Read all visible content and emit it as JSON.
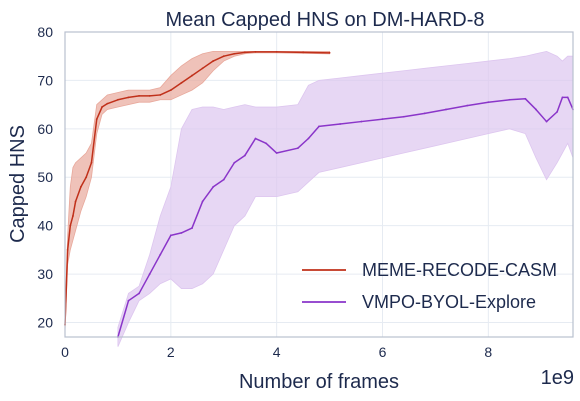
{
  "chart_data": {
    "type": "line",
    "title": "Mean Capped HNS on DM-HARD-8",
    "xlabel": "Number of frames",
    "ylabel": "Capped HNS",
    "x_multiplier_label": "1e9",
    "xlim": [
      0,
      9.6
    ],
    "ylim": [
      17,
      80
    ],
    "xticks": [
      0,
      2,
      4,
      6,
      8
    ],
    "yticks": [
      20,
      30,
      40,
      50,
      60,
      70,
      80
    ],
    "grid": true,
    "legend_position": "lower-right",
    "series": [
      {
        "name": "MEME-RECODE-CASM",
        "color": "#c0301a",
        "band_color": "#e8a89b",
        "x": [
          0.0,
          0.05,
          0.1,
          0.15,
          0.2,
          0.3,
          0.4,
          0.5,
          0.6,
          0.7,
          0.8,
          1.0,
          1.2,
          1.4,
          1.6,
          1.8,
          2.0,
          2.2,
          2.4,
          2.6,
          2.8,
          3.0,
          3.2,
          3.4,
          3.6,
          4.0,
          4.5,
          5.0
        ],
        "y": [
          19.5,
          35,
          40,
          42,
          45,
          48,
          50,
          53,
          62,
          64.5,
          65.2,
          66,
          66.5,
          66.8,
          66.8,
          67,
          68,
          69.5,
          71,
          72.5,
          74,
          75,
          75.5,
          75.8,
          75.9,
          75.9,
          75.8,
          75.7
        ],
        "upper": [
          21,
          38,
          48,
          52,
          53,
          54,
          55,
          57,
          65,
          66,
          67,
          67.5,
          68,
          68,
          68,
          68.5,
          71,
          73,
          74.5,
          75.5,
          76,
          76,
          76,
          76,
          76,
          76,
          76,
          76
        ],
        "lower": [
          18,
          32,
          35,
          37,
          39,
          43,
          46,
          50,
          59,
          63,
          64,
          64.5,
          65,
          65.5,
          65.5,
          66,
          66,
          67,
          68,
          69.5,
          72,
          74,
          75,
          75.5,
          75.7,
          75.7,
          75.6,
          75.5
        ]
      },
      {
        "name": "VMPO-BYOL-Explore",
        "color": "#8a35c9",
        "band_color": "#ddc6ef",
        "x": [
          1.0,
          1.2,
          1.4,
          1.6,
          1.8,
          2.0,
          2.2,
          2.4,
          2.6,
          2.8,
          3.0,
          3.2,
          3.4,
          3.6,
          3.8,
          4.0,
          4.4,
          4.6,
          4.8,
          5.2,
          5.6,
          6.0,
          6.4,
          6.8,
          7.2,
          7.6,
          8.0,
          8.4,
          8.7,
          8.9,
          9.1,
          9.3,
          9.4,
          9.5,
          9.6
        ],
        "y": [
          17,
          24.5,
          26,
          30,
          34,
          38,
          38.5,
          39.5,
          45,
          48,
          49.5,
          53,
          54.5,
          58,
          57,
          55,
          56,
          58,
          60.5,
          61,
          61.5,
          62,
          62.5,
          63.2,
          64,
          64.8,
          65.5,
          66,
          66.2,
          64,
          61.5,
          63.5,
          66.5,
          66.5,
          64
        ],
        "upper": [
          19,
          26,
          27.5,
          34,
          42,
          48,
          60,
          64,
          64.5,
          64.5,
          64,
          64.5,
          65,
          64.5,
          64.5,
          64.5,
          65,
          69,
          70,
          70.5,
          71,
          71.5,
          72,
          72.5,
          73,
          73.5,
          74,
          74.5,
          75,
          75.5,
          76,
          75,
          74,
          75,
          75
        ],
        "lower": [
          15,
          20,
          24.5,
          26,
          28,
          29,
          27,
          27,
          28,
          30,
          35,
          40,
          42,
          46,
          46,
          46,
          47,
          49,
          51,
          52,
          53,
          54,
          55,
          56,
          57,
          58,
          59,
          60,
          59,
          54,
          49.5,
          53,
          55,
          57,
          54
        ]
      }
    ]
  }
}
